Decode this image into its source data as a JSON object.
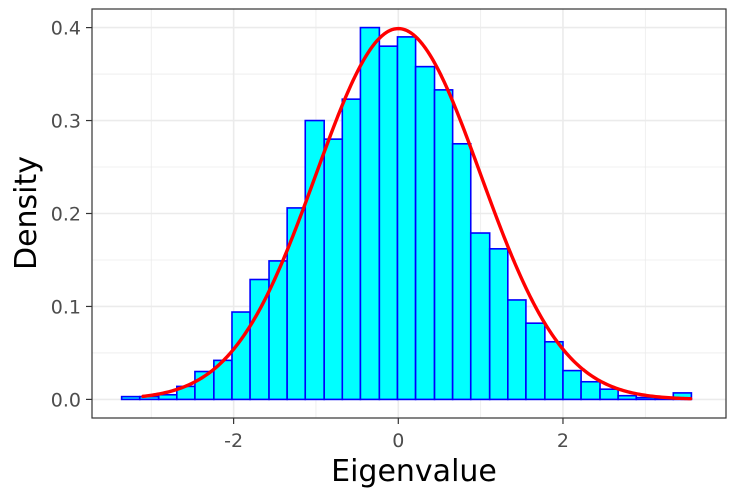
{
  "chart_data": {
    "type": "bar",
    "subtype": "histogram-with-density-curve",
    "title": "",
    "xlabel": "Eigenvalue",
    "ylabel": "Density",
    "xlim": [
      -3.72,
      3.98
    ],
    "ylim": [
      -0.02,
      0.42
    ],
    "x_ticks": [
      -2,
      0,
      2
    ],
    "x_tick_labels": [
      "-2",
      "0",
      "2"
    ],
    "y_ticks": [
      0,
      0.1,
      0.2,
      0.3,
      0.4
    ],
    "y_tick_labels": [
      "0.0",
      "0.1",
      "0.2",
      "0.3",
      "0.4"
    ],
    "grid": true,
    "legend": "none",
    "bin_width": 0.2238,
    "bins": [
      {
        "x_start": -3.36,
        "x_end": -3.14,
        "density": 0.003
      },
      {
        "x_start": -3.14,
        "x_end": -2.91,
        "density": 0.003
      },
      {
        "x_start": -2.91,
        "x_end": -2.69,
        "density": 0.005
      },
      {
        "x_start": -2.69,
        "x_end": -2.47,
        "density": 0.014
      },
      {
        "x_start": -2.47,
        "x_end": -2.24,
        "density": 0.03
      },
      {
        "x_start": -2.24,
        "x_end": -2.02,
        "density": 0.042
      },
      {
        "x_start": -2.02,
        "x_end": -1.8,
        "density": 0.094
      },
      {
        "x_start": -1.8,
        "x_end": -1.57,
        "density": 0.129
      },
      {
        "x_start": -1.57,
        "x_end": -1.35,
        "density": 0.149
      },
      {
        "x_start": -1.35,
        "x_end": -1.13,
        "density": 0.206
      },
      {
        "x_start": -1.13,
        "x_end": -0.9,
        "density": 0.3
      },
      {
        "x_start": -0.9,
        "x_end": -0.68,
        "density": 0.28
      },
      {
        "x_start": -0.68,
        "x_end": -0.46,
        "density": 0.323
      },
      {
        "x_start": -0.46,
        "x_end": -0.23,
        "density": 0.4
      },
      {
        "x_start": -0.23,
        "x_end": -0.01,
        "density": 0.38
      },
      {
        "x_start": -0.01,
        "x_end": 0.21,
        "density": 0.39
      },
      {
        "x_start": 0.21,
        "x_end": 0.44,
        "density": 0.358
      },
      {
        "x_start": 0.44,
        "x_end": 0.66,
        "density": 0.333
      },
      {
        "x_start": 0.66,
        "x_end": 0.88,
        "density": 0.275
      },
      {
        "x_start": 0.88,
        "x_end": 1.11,
        "density": 0.179
      },
      {
        "x_start": 1.11,
        "x_end": 1.33,
        "density": 0.162
      },
      {
        "x_start": 1.33,
        "x_end": 1.55,
        "density": 0.107
      },
      {
        "x_start": 1.55,
        "x_end": 1.78,
        "density": 0.082
      },
      {
        "x_start": 1.78,
        "x_end": 2.0,
        "density": 0.062
      },
      {
        "x_start": 2.0,
        "x_end": 2.22,
        "density": 0.031
      },
      {
        "x_start": 2.22,
        "x_end": 2.45,
        "density": 0.019
      },
      {
        "x_start": 2.45,
        "x_end": 2.67,
        "density": 0.011
      },
      {
        "x_start": 2.67,
        "x_end": 2.89,
        "density": 0.004
      },
      {
        "x_start": 2.89,
        "x_end": 3.12,
        "density": 0.002
      },
      {
        "x_start": 3.12,
        "x_end": 3.34,
        "density": 0.001
      },
      {
        "x_start": 3.34,
        "x_end": 3.56,
        "density": 0.007
      }
    ],
    "density_curve": {
      "distribution": "normal",
      "mean": 0,
      "sd": 1,
      "x_range": [
        -3.1,
        3.55
      ]
    },
    "colors": {
      "bar_fill": "#00ffff",
      "bar_outline": "#0000ff",
      "curve": "#ff0000",
      "grid": "#ebebeb",
      "panel_border": "#333333",
      "tick_label": "#4d4d4d",
      "axis_title": "#000000",
      "background": "#ffffff"
    }
  }
}
